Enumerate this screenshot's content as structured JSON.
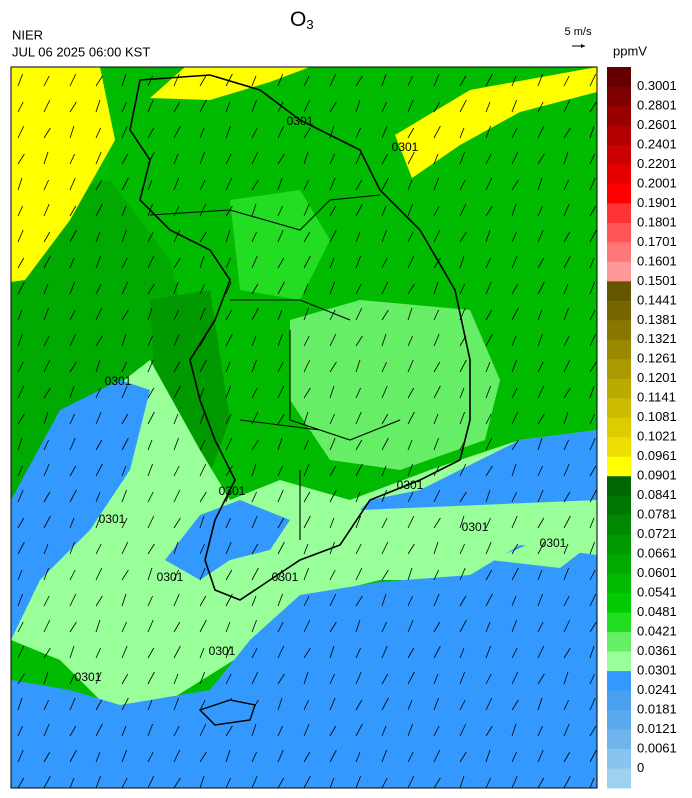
{
  "header": {
    "agency": "NIER",
    "timestamp": "JUL 06 2025 06:00 KST",
    "title": {
      "main": "O",
      "subscript": "3"
    },
    "wind_scale": "5 m/s"
  },
  "legend": {
    "unit": "ppmV",
    "labels": [
      "0.3001",
      "0.2801",
      "0.2601",
      "0.2401",
      "0.2201",
      "0.2001",
      "0.1901",
      "0.1801",
      "0.1701",
      "0.1601",
      "0.1501",
      "0.1441",
      "0.1381",
      "0.1321",
      "0.1261",
      "0.1201",
      "0.1141",
      "0.1081",
      "0.1021",
      "0.0961",
      "0.0901",
      "0.0841",
      "0.0781",
      "0.0721",
      "0.0661",
      "0.0601",
      "0.0541",
      "0.0481",
      "0.0421",
      "0.0361",
      "0.0301",
      "0.0241",
      "0.0181",
      "0.0121",
      "0.0061",
      "0"
    ],
    "colors": [
      "#660000",
      "#7f0000",
      "#990000",
      "#b20000",
      "#cc0000",
      "#e50000",
      "#ff0000",
      "#ff3333",
      "#ff5555",
      "#ff7777",
      "#ff9999",
      "#665500",
      "#776600",
      "#887700",
      "#998800",
      "#aa9900",
      "#bbaa00",
      "#ccbb00",
      "#ddcc00",
      "#eedd00",
      "#ffff00",
      "#006600",
      "#007700",
      "#008800",
      "#009900",
      "#00aa00",
      "#00bb00",
      "#00cc00",
      "#22dd22",
      "#66ee66",
      "#99ff99",
      "#3399ff",
      "#4a9ff0",
      "#5aa8ee",
      "#70b4ee",
      "#88c4ee",
      "#a0d0f0"
    ]
  },
  "map": {
    "contour_labels": [
      "0301",
      "0301",
      "0301",
      "0301",
      "0301",
      "0301",
      "0301",
      "0301",
      "0301",
      "0301",
      "0301",
      "0301"
    ]
  }
}
